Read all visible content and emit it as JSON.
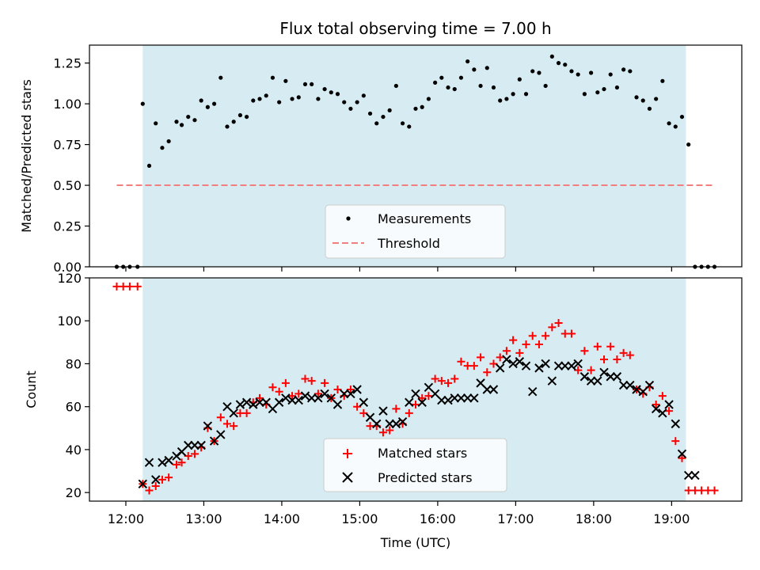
{
  "chart_data": [
    {
      "type": "scatter",
      "title": "Flux total observing time = 7.00 h",
      "xlabel": "",
      "ylabel": "Matched/Predicted stars",
      "ylim": [
        0,
        1.36
      ],
      "yticks": [
        "0.00",
        "0.25",
        "0.50",
        "0.75",
        "1.00",
        "1.25"
      ],
      "grid": false,
      "legend_position": "bottom-center",
      "shaded_region": [
        "12:13",
        "19:11"
      ],
      "threshold": {
        "name": "Threshold",
        "value": 0.5,
        "x_start": "11:53",
        "x_end": "19:33",
        "color": "#f08080"
      },
      "series": [
        {
          "name": "Measurements",
          "color": "#000000",
          "x": [
            "11:53",
            "11:58",
            "12:03",
            "12:09",
            "12:13",
            "12:18",
            "12:23",
            "12:28",
            "12:33",
            "12:39",
            "12:43",
            "12:48",
            "12:53",
            "12:58",
            "13:03",
            "13:08",
            "13:13",
            "13:18",
            "13:23",
            "13:28",
            "13:33",
            "13:38",
            "13:43",
            "13:48",
            "13:53",
            "13:58",
            "14:03",
            "14:08",
            "14:13",
            "14:18",
            "14:23",
            "14:28",
            "14:33",
            "14:38",
            "14:43",
            "14:48",
            "14:53",
            "14:58",
            "15:03",
            "15:08",
            "15:13",
            "15:18",
            "15:23",
            "15:28",
            "15:33",
            "15:38",
            "15:43",
            "15:48",
            "15:53",
            "15:58",
            "16:03",
            "16:08",
            "16:13",
            "16:18",
            "16:23",
            "16:28",
            "16:33",
            "16:38",
            "16:43",
            "16:48",
            "16:53",
            "16:58",
            "17:03",
            "17:08",
            "17:13",
            "17:18",
            "17:23",
            "17:28",
            "17:33",
            "17:38",
            "17:43",
            "17:48",
            "17:53",
            "17:58",
            "18:03",
            "18:08",
            "18:13",
            "18:18",
            "18:23",
            "18:28",
            "18:33",
            "18:38",
            "18:43",
            "18:48",
            "18:53",
            "18:58",
            "19:03",
            "19:08",
            "19:13",
            "19:18",
            "19:23",
            "19:28",
            "19:33"
          ],
          "y": [
            0.0,
            0.0,
            0.0,
            0.0,
            1.0,
            0.62,
            0.88,
            0.73,
            0.77,
            0.89,
            0.87,
            0.92,
            0.9,
            1.02,
            0.98,
            1.0,
            1.16,
            0.86,
            0.89,
            0.93,
            0.92,
            1.02,
            1.03,
            1.05,
            1.16,
            1.01,
            1.14,
            1.03,
            1.04,
            1.12,
            1.12,
            1.03,
            1.09,
            1.07,
            1.06,
            1.01,
            0.97,
            1.01,
            1.05,
            0.94,
            0.88,
            0.92,
            0.96,
            1.11,
            0.88,
            0.86,
            0.97,
            0.98,
            1.03,
            1.13,
            1.16,
            1.1,
            1.09,
            1.16,
            1.26,
            1.21,
            1.11,
            1.22,
            1.1,
            1.02,
            1.03,
            1.06,
            1.15,
            1.06,
            1.2,
            1.19,
            1.11,
            1.29,
            1.25,
            1.24,
            1.2,
            1.18,
            1.06,
            1.19,
            1.07,
            1.09,
            1.18,
            1.1,
            1.21,
            1.2,
            1.04,
            1.02,
            0.97,
            1.03,
            1.14,
            0.88,
            0.86,
            0.92,
            0.75,
            0.0,
            0.0,
            0.0,
            0.0
          ]
        }
      ]
    },
    {
      "type": "scatter",
      "title": "",
      "xlabel": "Time (UTC)",
      "ylabel": "Count",
      "ylim": [
        16,
        120
      ],
      "yticks": [
        "20",
        "40",
        "60",
        "80",
        "100",
        "120"
      ],
      "xticks": [
        "12:00",
        "13:00",
        "14:00",
        "15:00",
        "16:00",
        "17:00",
        "18:00",
        "19:00"
      ],
      "grid": false,
      "legend_position": "bottom-center",
      "shaded_region": [
        "12:13",
        "19:11"
      ],
      "series": [
        {
          "name": "Matched stars",
          "color": "#ff0000",
          "marker": "plus",
          "x": [
            "11:53",
            "11:58",
            "12:03",
            "12:09",
            "12:13",
            "12:18",
            "12:23",
            "12:28",
            "12:33",
            "12:39",
            "12:43",
            "12:48",
            "12:53",
            "12:58",
            "13:03",
            "13:08",
            "13:13",
            "13:18",
            "13:23",
            "13:28",
            "13:33",
            "13:38",
            "13:43",
            "13:48",
            "13:53",
            "13:58",
            "14:03",
            "14:08",
            "14:13",
            "14:18",
            "14:23",
            "14:28",
            "14:33",
            "14:38",
            "14:43",
            "14:48",
            "14:53",
            "14:58",
            "15:03",
            "15:08",
            "15:13",
            "15:18",
            "15:23",
            "15:28",
            "15:33",
            "15:38",
            "15:43",
            "15:48",
            "15:53",
            "15:58",
            "16:03",
            "16:08",
            "16:13",
            "16:18",
            "16:23",
            "16:28",
            "16:33",
            "16:38",
            "16:43",
            "16:48",
            "16:53",
            "16:58",
            "17:03",
            "17:08",
            "17:13",
            "17:18",
            "17:23",
            "17:28",
            "17:33",
            "17:38",
            "17:43",
            "17:48",
            "17:53",
            "17:58",
            "18:03",
            "18:08",
            "18:13",
            "18:18",
            "18:23",
            "18:28",
            "18:33",
            "18:38",
            "18:43",
            "18:48",
            "18:53",
            "18:58",
            "19:03",
            "19:08",
            "19:13",
            "19:18",
            "19:23",
            "19:28",
            "19:33"
          ],
          "y": [
            116,
            116,
            116,
            116,
            24,
            21,
            23,
            26,
            27,
            33,
            34,
            37,
            38,
            41,
            50,
            44,
            55,
            52,
            51,
            57,
            57,
            62,
            64,
            61,
            69,
            67,
            71,
            65,
            66,
            73,
            72,
            66,
            71,
            64,
            68,
            65,
            68,
            60,
            57,
            51,
            51,
            48,
            49,
            59,
            52,
            57,
            61,
            64,
            65,
            73,
            72,
            71,
            73,
            81,
            79,
            79,
            83,
            76,
            80,
            83,
            86,
            91,
            85,
            89,
            93,
            89,
            93,
            97,
            99,
            94,
            94,
            77,
            86,
            77,
            88,
            82,
            88,
            82,
            85,
            84,
            68,
            66,
            69,
            61,
            65,
            58,
            44,
            36,
            21,
            21,
            21,
            21,
            21
          ]
        },
        {
          "name": "Predicted stars",
          "color": "#000000",
          "marker": "x",
          "x": [
            "12:13",
            "12:18",
            "12:23",
            "12:28",
            "12:33",
            "12:39",
            "12:43",
            "12:48",
            "12:53",
            "12:58",
            "13:03",
            "13:08",
            "13:13",
            "13:18",
            "13:23",
            "13:28",
            "13:33",
            "13:38",
            "13:43",
            "13:48",
            "13:53",
            "13:58",
            "14:03",
            "14:08",
            "14:13",
            "14:18",
            "14:23",
            "14:28",
            "14:33",
            "14:38",
            "14:43",
            "14:48",
            "14:53",
            "14:58",
            "15:03",
            "15:08",
            "15:13",
            "15:18",
            "15:23",
            "15:28",
            "15:33",
            "15:38",
            "15:43",
            "15:48",
            "15:53",
            "15:58",
            "16:03",
            "16:08",
            "16:13",
            "16:18",
            "16:23",
            "16:28",
            "16:33",
            "16:38",
            "16:43",
            "16:48",
            "16:53",
            "16:58",
            "17:03",
            "17:08",
            "17:13",
            "17:18",
            "17:23",
            "17:28",
            "17:33",
            "17:38",
            "17:43",
            "17:48",
            "17:53",
            "17:58",
            "18:03",
            "18:08",
            "18:13",
            "18:18",
            "18:23",
            "18:28",
            "18:33",
            "18:38",
            "18:43",
            "18:48",
            "18:53",
            "18:58",
            "19:03",
            "19:08",
            "19:13",
            "19:18"
          ],
          "y": [
            24,
            34,
            26,
            34,
            35,
            37,
            39,
            42,
            42,
            42,
            51,
            44,
            47,
            60,
            57,
            61,
            62,
            61,
            62,
            62,
            59,
            62,
            64,
            63,
            63,
            65,
            64,
            64,
            66,
            64,
            61,
            66,
            66,
            68,
            62,
            55,
            52,
            58,
            52,
            52,
            53,
            62,
            66,
            62,
            69,
            66,
            63,
            63,
            64,
            64,
            64,
            64,
            71,
            68,
            68,
            78,
            82,
            80,
            81,
            79,
            67,
            78,
            80,
            72,
            79,
            79,
            79,
            80,
            74,
            72,
            72,
            76,
            74,
            74,
            70,
            70,
            68,
            67,
            70,
            59,
            57,
            61,
            52,
            38,
            28,
            28
          ]
        }
      ]
    }
  ]
}
